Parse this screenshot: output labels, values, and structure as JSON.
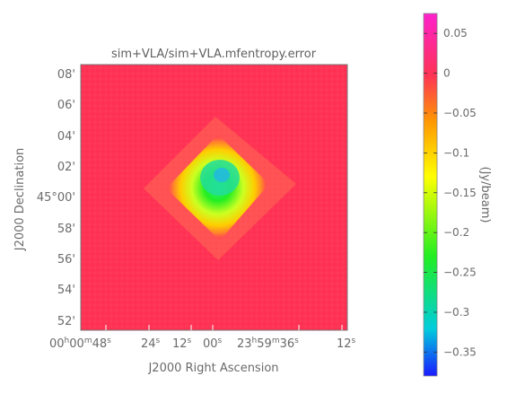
{
  "chart_data": {
    "type": "heatmap",
    "title": "sim+VLA/sim+VLA.mfentropy.error",
    "xlabel": "J2000 Right Ascension",
    "ylabel": "J2000 Declination",
    "x_ticks": [
      {
        "main": "00",
        "h": "h",
        "m1": "00",
        "m": "m",
        "s1": "48",
        "s": "s"
      },
      {
        "s1": "24",
        "s": "s"
      },
      {
        "s1": "12",
        "s": "s"
      },
      {
        "s1": "00",
        "s": "s"
      },
      {
        "main": "23",
        "h": "h",
        "m1": "59",
        "m": "m",
        "s1": "36",
        "s": "s"
      },
      {
        "s1": "12",
        "s": "s"
      }
    ],
    "y_ticks": [
      {
        "text": "08'"
      },
      {
        "text": "06'"
      },
      {
        "text": "04'"
      },
      {
        "text": "02'"
      },
      {
        "text": "45°00'"
      },
      {
        "text": "58'"
      },
      {
        "text": "56'"
      },
      {
        "text": "54'"
      },
      {
        "text": "52'"
      }
    ],
    "colorbar": {
      "label": "(Jy/beam)",
      "range": [
        -0.38,
        0.075
      ],
      "ticks": [
        {
          "value": 0.05,
          "label": "0.05"
        },
        {
          "value": 0.0,
          "label": "0"
        },
        {
          "value": -0.05,
          "label": "−0.05"
        },
        {
          "value": -0.1,
          "label": "−0.1"
        },
        {
          "value": -0.15,
          "label": "−0.15"
        },
        {
          "value": -0.2,
          "label": "−0.2"
        },
        {
          "value": -0.25,
          "label": "−0.25"
        },
        {
          "value": -0.3,
          "label": "−0.3"
        },
        {
          "value": -0.35,
          "label": "−0.35"
        }
      ],
      "colors": [
        "#1a1aff",
        "#00ccdd",
        "#22ee22",
        "#ffff00",
        "#ff9900",
        "#ff3355",
        "#ff22cc"
      ]
    },
    "image": {
      "background_value": 0.0,
      "center_min_value": -0.33,
      "edge_color": "#ff3355",
      "shape": "diamond"
    }
  }
}
